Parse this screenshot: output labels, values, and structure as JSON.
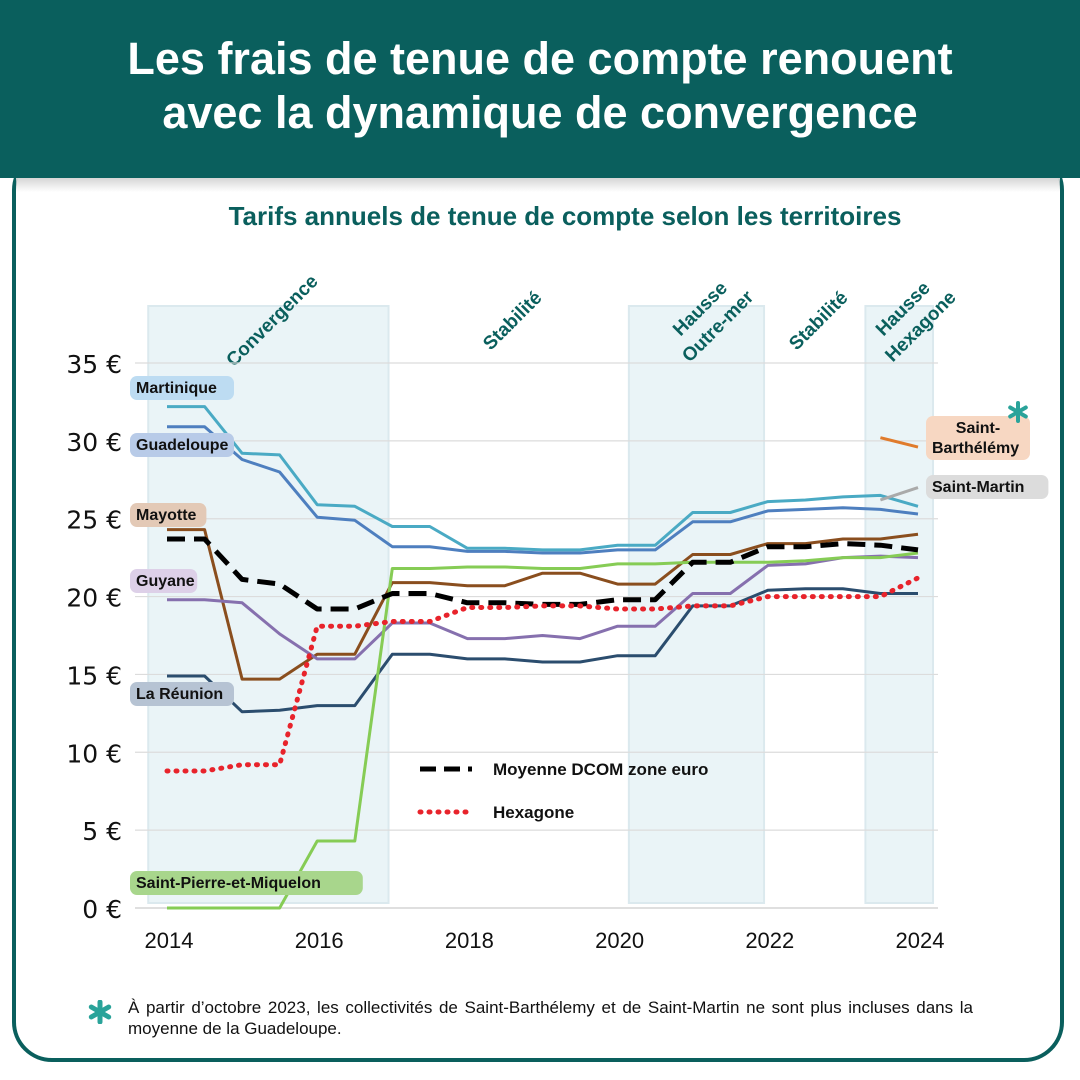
{
  "header": {
    "title_line1": "Les frais de tenue de compte renouent",
    "title_line2": "avec la dynamique de convergence"
  },
  "chart_data": {
    "type": "line",
    "title": "Tarifs annuels de tenue de compte selon les territoires",
    "xlabel": "",
    "ylabel": "",
    "xlim": [
      2013.8,
      2024.2
    ],
    "ylim": [
      0,
      35
    ],
    "x_ticks": [
      "2014",
      "2016",
      "2018",
      "2020",
      "2022",
      "2024"
    ],
    "y_ticks": [
      "0 €",
      "5 €",
      "10 €",
      "15 €",
      "20 €",
      "25 €",
      "30 €",
      "35 €"
    ],
    "grid": "horizontal",
    "colors": {
      "band": "#eaf4f7",
      "period_label": "#0a5f5d",
      "axis_text": "#111111",
      "star": "#2aa39a"
    },
    "periods": [
      {
        "label": "Convergence",
        "x_start": 2013.75,
        "x_end": 2016.95,
        "shaded": true
      },
      {
        "label": "Stabilité",
        "x_start": 2016.95,
        "x_end": 2020.15,
        "shaded": false
      },
      {
        "label": "Hausse\nOutre-mer",
        "x_start": 2020.15,
        "x_end": 2021.95,
        "shaded": true
      },
      {
        "label": "Stabilité",
        "x_start": 2021.95,
        "x_end": 2023.3,
        "shaded": false
      },
      {
        "label": "Hausse\nHexagone",
        "x_start": 2023.3,
        "x_end": 2024.2,
        "shaded": true
      }
    ],
    "series": [
      {
        "name": "Martinique",
        "color": "#4aaac4",
        "label_bg": "#bddcf2",
        "label_pos": "left",
        "x": [
          2014,
          2014.5,
          2015,
          2015.5,
          2016,
          2016.5,
          2017,
          2017.5,
          2018,
          2018.5,
          2019,
          2019.5,
          2020,
          2020.5,
          2021,
          2021.5,
          2022,
          2022.5,
          2023,
          2023.5,
          2024
        ],
        "y": [
          32.2,
          32.2,
          29.2,
          29.1,
          25.9,
          25.8,
          24.5,
          24.5,
          23.1,
          23.1,
          23.0,
          23.0,
          23.3,
          23.3,
          25.4,
          25.4,
          26.1,
          26.2,
          26.4,
          26.5,
          25.8
        ]
      },
      {
        "name": "Guadeloupe",
        "color": "#4e7fbf",
        "label_bg": "#b8cbe8",
        "label_pos": "left",
        "x": [
          2014,
          2014.5,
          2015,
          2015.5,
          2016,
          2016.5,
          2017,
          2017.5,
          2018,
          2018.5,
          2019,
          2019.5,
          2020,
          2020.5,
          2021,
          2021.5,
          2022,
          2022.5,
          2023,
          2023.5,
          2024
        ],
        "y": [
          30.9,
          30.9,
          28.8,
          28.0,
          25.1,
          24.9,
          23.2,
          23.2,
          22.9,
          22.9,
          22.8,
          22.8,
          23.0,
          23.0,
          24.8,
          24.8,
          25.5,
          25.6,
          25.7,
          25.6,
          25.3
        ]
      },
      {
        "name": "Mayotte",
        "color": "#8a4e1e",
        "label_bg": "#e3c9b6",
        "label_pos": "left",
        "x": [
          2014,
          2014.5,
          2015,
          2015.5,
          2016,
          2016.5,
          2017,
          2017.5,
          2018,
          2018.5,
          2019,
          2019.5,
          2020,
          2020.5,
          2021,
          2021.5,
          2022,
          2022.5,
          2023,
          2023.5,
          2024
        ],
        "y": [
          24.3,
          24.3,
          14.7,
          14.7,
          16.3,
          16.3,
          20.9,
          20.9,
          20.7,
          20.7,
          21.5,
          21.5,
          20.8,
          20.8,
          22.7,
          22.7,
          23.4,
          23.4,
          23.7,
          23.7,
          24.0
        ]
      },
      {
        "name": "Guyane",
        "color": "#8670ae",
        "label_bg": "#ddd0e8",
        "label_pos": "left",
        "x": [
          2014,
          2014.5,
          2015,
          2015.5,
          2016,
          2016.5,
          2017,
          2017.5,
          2018,
          2018.5,
          2019,
          2019.5,
          2020,
          2020.5,
          2021,
          2021.5,
          2022,
          2022.5,
          2023,
          2023.5,
          2024
        ],
        "y": [
          19.8,
          19.8,
          19.6,
          17.6,
          16.0,
          16.0,
          18.3,
          18.3,
          17.3,
          17.3,
          17.5,
          17.3,
          18.1,
          18.1,
          20.2,
          20.2,
          22.0,
          22.1,
          22.5,
          22.6,
          22.5
        ]
      },
      {
        "name": "La Réunion",
        "color": "#2b4d6e",
        "label_bg": "#b6c3d3",
        "label_pos": "left",
        "x": [
          2014,
          2014.5,
          2015,
          2015.5,
          2016,
          2016.5,
          2017,
          2017.5,
          2018,
          2018.5,
          2019,
          2019.5,
          2020,
          2020.5,
          2021,
          2021.5,
          2022,
          2022.5,
          2023,
          2023.5,
          2024
        ],
        "y": [
          14.9,
          14.9,
          12.6,
          12.7,
          13.0,
          13.0,
          16.3,
          16.3,
          16.0,
          16.0,
          15.8,
          15.8,
          16.2,
          16.2,
          19.4,
          19.4,
          20.4,
          20.5,
          20.5,
          20.2,
          20.2
        ]
      },
      {
        "name": "Saint-Pierre-et-Miquelon",
        "color": "#86cc55",
        "label_bg": "#a8d68c",
        "label_pos": "left",
        "x": [
          2014,
          2014.5,
          2015,
          2015.5,
          2016,
          2016.5,
          2017,
          2017.5,
          2018,
          2018.5,
          2019,
          2019.5,
          2020,
          2020.5,
          2021,
          2021.5,
          2022,
          2022.5,
          2023,
          2023.5,
          2024
        ],
        "y": [
          0,
          0,
          0,
          0,
          4.3,
          4.3,
          21.8,
          21.8,
          21.9,
          21.9,
          21.8,
          21.8,
          22.1,
          22.1,
          22.2,
          22.2,
          22.2,
          22.3,
          22.5,
          22.5,
          22.8
        ]
      },
      {
        "name": "Saint-\nBarthélémy",
        "color": "#e07b2c",
        "label_bg": "#f7d7c2",
        "label_pos": "right",
        "x": [
          2023.5,
          2024
        ],
        "y": [
          30.2,
          29.6
        ]
      },
      {
        "name": "Saint-Martin",
        "color": "#aaaaaa",
        "label_bg": "#dcdcdc",
        "label_pos": "right",
        "x": [
          2023.5,
          2024
        ],
        "y": [
          26.2,
          27.0
        ]
      },
      {
        "name": "Moyenne DCOM zone euro",
        "color": "#000000",
        "style": "dashed",
        "in_legend": true,
        "x": [
          2014,
          2014.5,
          2015,
          2015.5,
          2016,
          2016.5,
          2017,
          2017.5,
          2018,
          2018.5,
          2019,
          2019.5,
          2020,
          2020.5,
          2021,
          2021.5,
          2022,
          2022.5,
          2023,
          2023.5,
          2024
        ],
        "y": [
          23.7,
          23.7,
          21.1,
          20.8,
          19.2,
          19.2,
          20.2,
          20.2,
          19.6,
          19.6,
          19.5,
          19.5,
          19.8,
          19.8,
          22.2,
          22.2,
          23.2,
          23.2,
          23.4,
          23.3,
          23.0
        ]
      },
      {
        "name": "Hexagone",
        "color": "#e8232b",
        "style": "dotted",
        "in_legend": true,
        "x": [
          2014,
          2014.5,
          2015,
          2015.5,
          2016,
          2016.5,
          2017,
          2017.5,
          2018,
          2018.5,
          2019,
          2019.5,
          2020,
          2020.5,
          2021,
          2021.5,
          2022,
          2022.5,
          2023,
          2023.5,
          2024
        ],
        "y": [
          8.8,
          8.8,
          9.2,
          9.2,
          18.1,
          18.1,
          18.4,
          18.4,
          19.3,
          19.3,
          19.4,
          19.4,
          19.2,
          19.2,
          19.4,
          19.4,
          20.0,
          20.0,
          20.0,
          20.0,
          21.2
        ]
      }
    ]
  },
  "footnote": {
    "text": "À partir d’octobre 2023, les collectivités de Saint-Barthélemy et de Saint-Martin ne sont plus incluses dans la moyenne de la Guadeloupe.",
    "marker_icon": "asterisk-icon"
  }
}
